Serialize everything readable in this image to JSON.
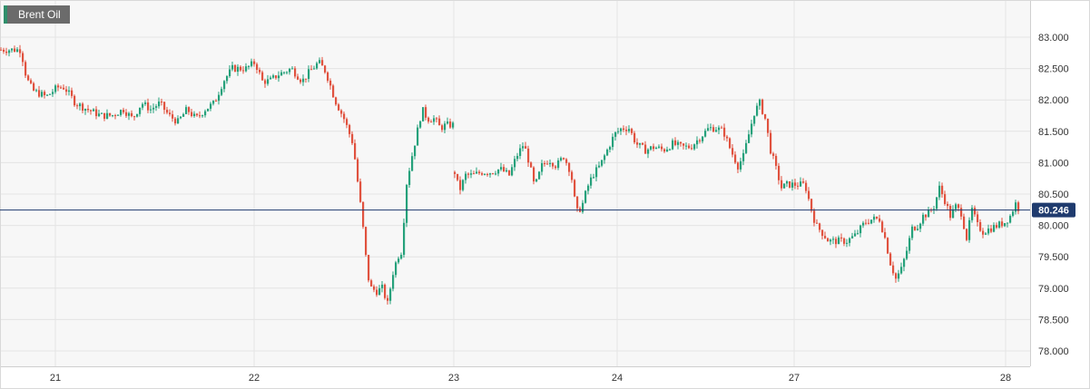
{
  "instrument": "Brent Oil",
  "last_price_label": "80.246",
  "colors": {
    "up": "#26a17b",
    "down": "#e0523f",
    "price_line": "#1f3b6e",
    "plot_bg": "#f7f7f7",
    "grid": "#e4e4e4",
    "axis_text": "#333333"
  },
  "chart_data": {
    "type": "candlestick",
    "title": "Brent Oil",
    "y_ticks": [
      "78.000",
      "78.500",
      "79.000",
      "79.500",
      "80.000",
      "80.500",
      "81.000",
      "81.500",
      "82.000",
      "82.500",
      "83.000"
    ],
    "ylim": [
      77.8,
      83.5
    ],
    "x_tick_labels": [
      "21",
      "22",
      "23",
      "24",
      "27",
      "28"
    ],
    "last_price": 80.246,
    "grid": true,
    "close_path": [
      [
        0,
        82.8
      ],
      [
        22,
        82.8
      ],
      [
        28,
        82.35
      ],
      [
        35,
        82.15
      ],
      [
        50,
        82.05
      ],
      [
        62,
        82.2
      ],
      [
        70,
        82.2
      ],
      [
        82,
        81.95
      ],
      [
        95,
        81.85
      ],
      [
        110,
        81.75
      ],
      [
        122,
        81.75
      ],
      [
        135,
        81.85
      ],
      [
        145,
        81.7
      ],
      [
        155,
        81.95
      ],
      [
        165,
        81.85
      ],
      [
        175,
        81.95
      ],
      [
        185,
        81.75
      ],
      [
        195,
        81.65
      ],
      [
        205,
        81.85
      ],
      [
        215,
        81.7
      ],
      [
        225,
        81.85
      ],
      [
        235,
        81.95
      ],
      [
        245,
        82.3
      ],
      [
        255,
        82.5
      ],
      [
        270,
        82.5
      ],
      [
        280,
        82.6
      ],
      [
        288,
        82.3
      ],
      [
        296,
        82.3
      ],
      [
        305,
        82.4
      ],
      [
        320,
        82.5
      ],
      [
        332,
        82.3
      ],
      [
        340,
        82.45
      ],
      [
        350,
        82.6
      ],
      [
        358,
        82.45
      ],
      [
        368,
        82.0
      ],
      [
        378,
        81.7
      ],
      [
        388,
        81.3
      ],
      [
        393,
        80.7
      ],
      [
        398,
        80.1
      ],
      [
        404,
        79.2
      ],
      [
        408,
        79.0
      ],
      [
        414,
        78.95
      ],
      [
        420,
        79.0
      ],
      [
        426,
        78.75
      ],
      [
        432,
        79.25
      ],
      [
        437,
        79.5
      ],
      [
        442,
        79.6
      ],
      [
        446,
        80.6
      ],
      [
        452,
        81.05
      ],
      [
        458,
        81.45
      ],
      [
        464,
        81.85
      ],
      [
        470,
        81.7
      ],
      [
        478,
        81.7
      ],
      [
        484,
        81.55
      ],
      [
        490,
        81.6
      ],
      [
        498,
        81.6
      ]
    ],
    "close_path_2": [
      [
        500,
        80.85
      ],
      [
        505,
        80.55
      ],
      [
        512,
        80.8
      ],
      [
        520,
        80.8
      ],
      [
        530,
        80.85
      ],
      [
        540,
        80.85
      ],
      [
        550,
        80.9
      ],
      [
        560,
        80.8
      ],
      [
        568,
        81.1
      ],
      [
        576,
        81.3
      ],
      [
        582,
        81.0
      ],
      [
        588,
        80.6
      ],
      [
        596,
        80.95
      ],
      [
        604,
        81.05
      ],
      [
        612,
        80.95
      ],
      [
        620,
        81.1
      ],
      [
        628,
        80.85
      ],
      [
        634,
        80.2
      ],
      [
        640,
        80.3
      ],
      [
        646,
        80.6
      ],
      [
        652,
        80.8
      ],
      [
        660,
        80.95
      ],
      [
        668,
        81.2
      ],
      [
        676,
        81.45
      ],
      [
        684,
        81.55
      ],
      [
        692,
        81.55
      ],
      [
        700,
        81.3
      ],
      [
        710,
        81.2
      ],
      [
        720,
        81.25
      ],
      [
        730,
        81.2
      ],
      [
        740,
        81.3
      ],
      [
        750,
        81.25
      ],
      [
        760,
        81.25
      ],
      [
        770,
        81.4
      ],
      [
        780,
        81.55
      ],
      [
        788,
        81.55
      ],
      [
        796,
        81.5
      ],
      [
        804,
        81.2
      ],
      [
        812,
        80.95
      ],
      [
        818,
        81.1
      ],
      [
        824,
        81.45
      ],
      [
        830,
        81.8
      ],
      [
        836,
        81.95
      ],
      [
        842,
        81.7
      ],
      [
        848,
        81.2
      ],
      [
        854,
        80.9
      ],
      [
        860,
        80.6
      ],
      [
        866,
        80.65
      ],
      [
        876,
        80.65
      ],
      [
        886,
        80.65
      ],
      [
        892,
        80.3
      ],
      [
        898,
        80.0
      ],
      [
        904,
        79.9
      ],
      [
        912,
        79.75
      ],
      [
        922,
        79.75
      ],
      [
        932,
        79.75
      ],
      [
        942,
        79.85
      ],
      [
        952,
        80.05
      ],
      [
        960,
        80.1
      ],
      [
        968,
        80.1
      ],
      [
        974,
        79.8
      ],
      [
        980,
        79.4
      ],
      [
        986,
        79.15
      ],
      [
        992,
        79.3
      ],
      [
        998,
        79.6
      ],
      [
        1004,
        79.95
      ],
      [
        1010,
        80.0
      ],
      [
        1016,
        80.15
      ],
      [
        1022,
        80.2
      ],
      [
        1028,
        80.3
      ],
      [
        1034,
        80.6
      ],
      [
        1040,
        80.4
      ],
      [
        1046,
        80.15
      ],
      [
        1052,
        80.3
      ],
      [
        1058,
        80.2
      ],
      [
        1064,
        79.8
      ],
      [
        1070,
        80.25
      ],
      [
        1076,
        80.0
      ],
      [
        1082,
        79.9
      ],
      [
        1090,
        79.95
      ],
      [
        1098,
        80.0
      ],
      [
        1106,
        80.05
      ],
      [
        1112,
        80.15
      ],
      [
        1118,
        80.35
      ],
      [
        1122,
        80.25
      ]
    ]
  }
}
